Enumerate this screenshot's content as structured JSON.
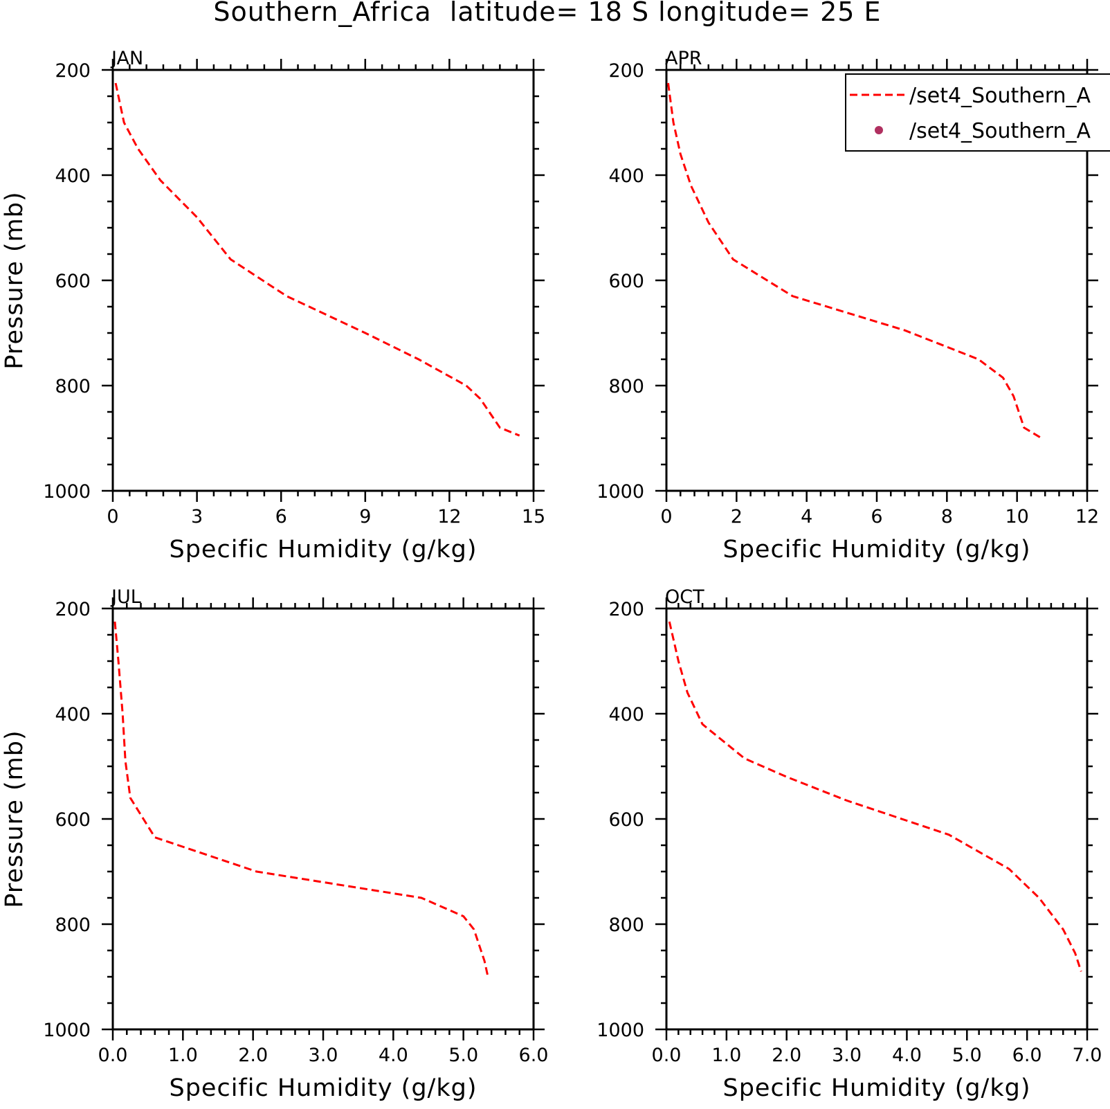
{
  "page": {
    "title": "Southern_Africa  latitude= 18 S longitude= 25 E"
  },
  "legend": {
    "location": "top-right of APR panel (clipped at page edge)",
    "entries": [
      {
        "label": "/set4_Southern_A",
        "style": "dashed-line",
        "color": "#ff0000"
      },
      {
        "label": "/set4_Southern_A",
        "style": "dot",
        "color": "#b03060"
      }
    ]
  },
  "colors": {
    "line": "#ff0000",
    "marker": "#b03060",
    "axis": "#000000"
  },
  "chart_data": [
    {
      "type": "line",
      "panel": "JAN",
      "xlabel": "Specific Humidity (g/kg)",
      "ylabel": "Pressure (mb)",
      "xlim": [
        0,
        15
      ],
      "ylim": [
        1000,
        200
      ],
      "y_inverted": true,
      "xticks": [
        0,
        3,
        6,
        9,
        12,
        15
      ],
      "xtick_labels": [
        "0",
        "3",
        "6",
        "9",
        "12",
        "15"
      ],
      "yticks": [
        200,
        400,
        600,
        800,
        1000
      ],
      "ytick_labels": [
        "200",
        "400",
        "600",
        "800",
        "1000"
      ],
      "grid": false,
      "series": [
        {
          "style": "dashed",
          "points": [
            [
              0.1,
              225
            ],
            [
              0.4,
              300
            ],
            [
              0.9,
              350
            ],
            [
              1.7,
              410
            ],
            [
              3.0,
              480
            ],
            [
              4.2,
              560
            ],
            [
              6.2,
              630
            ],
            [
              9.0,
              700
            ],
            [
              10.9,
              750
            ],
            [
              12.6,
              800
            ],
            [
              13.1,
              825
            ],
            [
              13.8,
              880
            ],
            [
              14.5,
              895
            ]
          ]
        }
      ]
    },
    {
      "type": "line",
      "panel": "APR",
      "xlabel": "Specific Humidity (g/kg)",
      "ylabel": "",
      "xlim": [
        0,
        12
      ],
      "ylim": [
        1000,
        200
      ],
      "y_inverted": true,
      "xticks": [
        0,
        2,
        4,
        6,
        8,
        10,
        12
      ],
      "xtick_labels": [
        "0",
        "2",
        "4",
        "6",
        "8",
        "10",
        "12"
      ],
      "yticks": [
        200,
        400,
        600,
        800,
        1000
      ],
      "ytick_labels": [
        "200",
        "400",
        "600",
        "800",
        "1000"
      ],
      "grid": false,
      "series": [
        {
          "style": "dashed",
          "points": [
            [
              0.05,
              225
            ],
            [
              0.2,
              300
            ],
            [
              0.4,
              360
            ],
            [
              0.7,
              420
            ],
            [
              1.2,
              490
            ],
            [
              1.9,
              560
            ],
            [
              3.6,
              630
            ],
            [
              6.8,
              695
            ],
            [
              8.9,
              750
            ],
            [
              9.6,
              785
            ],
            [
              9.9,
              820
            ],
            [
              10.2,
              880
            ],
            [
              10.7,
              900
            ]
          ]
        }
      ]
    },
    {
      "type": "line",
      "panel": "JUL",
      "xlabel": "Specific Humidity (g/kg)",
      "ylabel": "Pressure (mb)",
      "xlim": [
        0,
        6
      ],
      "ylim": [
        1000,
        200
      ],
      "y_inverted": true,
      "xticks": [
        0,
        1,
        2,
        3,
        4,
        5,
        6
      ],
      "xtick_labels": [
        "0.0",
        "1.0",
        "2.0",
        "3.0",
        "4.0",
        "5.0",
        "6.0"
      ],
      "yticks": [
        200,
        400,
        600,
        800,
        1000
      ],
      "ytick_labels": [
        "200",
        "400",
        "600",
        "800",
        "1000"
      ],
      "grid": false,
      "series": [
        {
          "style": "dashed",
          "points": [
            [
              0.03,
              225
            ],
            [
              0.08,
              300
            ],
            [
              0.14,
              400
            ],
            [
              0.18,
              490
            ],
            [
              0.25,
              560
            ],
            [
              0.6,
              635
            ],
            [
              2.05,
              700
            ],
            [
              4.4,
              750
            ],
            [
              5.0,
              785
            ],
            [
              5.15,
              810
            ],
            [
              5.3,
              870
            ],
            [
              5.35,
              900
            ]
          ]
        }
      ]
    },
    {
      "type": "line",
      "panel": "OCT",
      "xlabel": "Specific Humidity (g/kg)",
      "ylabel": "",
      "xlim": [
        0,
        7
      ],
      "ylim": [
        1000,
        200
      ],
      "y_inverted": true,
      "xticks": [
        0,
        1,
        2,
        3,
        4,
        5,
        6,
        7
      ],
      "xtick_labels": [
        "0.0",
        "1.0",
        "2.0",
        "3.0",
        "4.0",
        "5.0",
        "6.0",
        "7.0"
      ],
      "yticks": [
        200,
        400,
        600,
        800,
        1000
      ],
      "ytick_labels": [
        "200",
        "400",
        "600",
        "800",
        "1000"
      ],
      "grid": false,
      "series": [
        {
          "style": "dashed",
          "points": [
            [
              0.05,
              225
            ],
            [
              0.2,
              300
            ],
            [
              0.35,
              360
            ],
            [
              0.6,
              420
            ],
            [
              1.3,
              485
            ],
            [
              2.0,
              520
            ],
            [
              3.0,
              565
            ],
            [
              4.7,
              630
            ],
            [
              5.7,
              695
            ],
            [
              6.2,
              750
            ],
            [
              6.6,
              810
            ],
            [
              6.8,
              855
            ],
            [
              6.9,
              890
            ]
          ]
        }
      ]
    }
  ]
}
